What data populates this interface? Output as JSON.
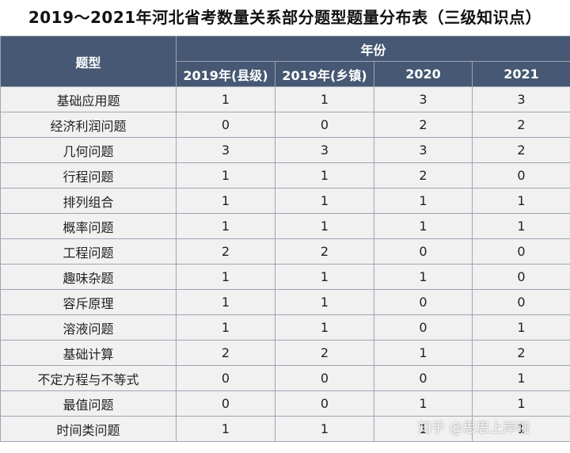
{
  "title": "2019～2021年河北省考数量关系部分题型题量分布表（三级知识点）",
  "headers": {
    "category": "题型",
    "year_group": "年份",
    "years": [
      "2019年(县级)",
      "2019年(乡镇)",
      "2020",
      "2021"
    ]
  },
  "rows": [
    {
      "category": "基础应用题",
      "values": [
        "1",
        "1",
        "3",
        "3"
      ]
    },
    {
      "category": "经济利润问题",
      "values": [
        "0",
        "0",
        "2",
        "2"
      ]
    },
    {
      "category": "几何问题",
      "values": [
        "3",
        "3",
        "3",
        "2"
      ]
    },
    {
      "category": "行程问题",
      "values": [
        "1",
        "1",
        "2",
        "0"
      ]
    },
    {
      "category": "排列组合",
      "values": [
        "1",
        "1",
        "1",
        "1"
      ]
    },
    {
      "category": "概率问题",
      "values": [
        "1",
        "1",
        "1",
        "1"
      ]
    },
    {
      "category": "工程问题",
      "values": [
        "2",
        "2",
        "0",
        "0"
      ]
    },
    {
      "category": "趣味杂题",
      "values": [
        "1",
        "1",
        "1",
        "0"
      ]
    },
    {
      "category": "容斥原理",
      "values": [
        "1",
        "1",
        "0",
        "0"
      ]
    },
    {
      "category": "溶液问题",
      "values": [
        "1",
        "1",
        "0",
        "1"
      ]
    },
    {
      "category": "基础计算",
      "values": [
        "2",
        "2",
        "1",
        "2"
      ]
    },
    {
      "category": "不定方程与不等式",
      "values": [
        "0",
        "0",
        "0",
        "1"
      ]
    },
    {
      "category": "最值问题",
      "values": [
        "0",
        "0",
        "1",
        "1"
      ]
    },
    {
      "category": "时间类问题",
      "values": [
        "1",
        "1",
        "1",
        "1"
      ]
    }
  ],
  "watermark": "知乎 @思思上岸啦",
  "colors": {
    "header_bg": "#465873",
    "header_text": "#ffffff",
    "cell_bg": "#f1f1f1",
    "border": "#9ea5b3"
  }
}
